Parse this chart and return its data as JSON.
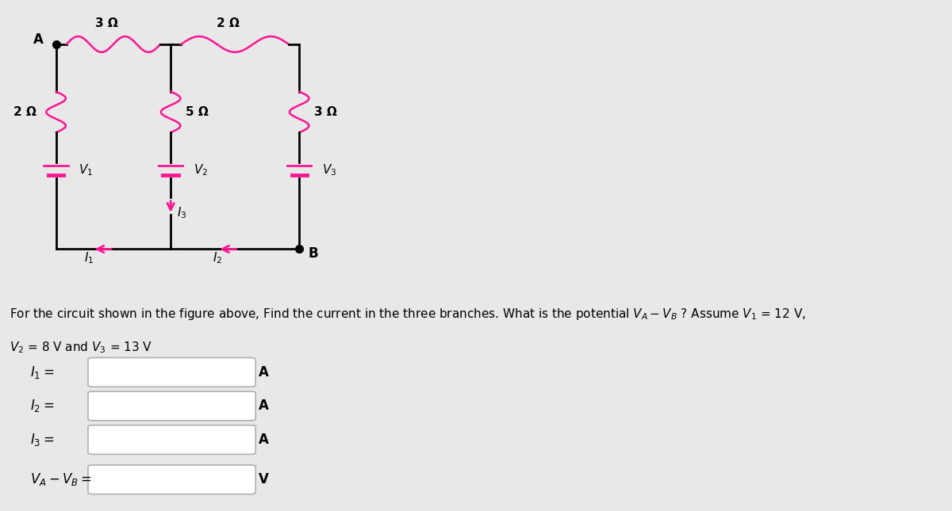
{
  "bg_color": "#e8e8e8",
  "circuit_bg": "#ffffff",
  "resistor_color": "#ff1493",
  "wire_color": "#000000",
  "arrow_color": "#ff1493",
  "battery_color": "#ff1493",
  "text_color": "#000000",
  "labels": {
    "R1_top": "3 Ω",
    "R2_top": "2 Ω",
    "R_left": "2 Ω",
    "R_mid": "5 Ω",
    "R_right": "3 Ω",
    "V1": "$V_1$",
    "V2": "$V_2$",
    "V3": "$V_3$",
    "I1": "$I_1$",
    "I2": "$I_2$",
    "I3": "$I_3$",
    "A": "A",
    "B": "B"
  },
  "title_line1": "For the circuit shown in the figure above, Find the current in the three branches. What is the potential $V_A - V_B$ ? Assume $V_1$ = 12 V,",
  "title_line2": "$V_2$ = 8 V and $V_3$ = 13 V",
  "input_labels": [
    "$I_1 =$",
    "$I_2 =$",
    "$I_3 =$",
    "$V_A - V_B =$"
  ],
  "input_units": [
    "A",
    "A",
    "A",
    "V"
  ]
}
